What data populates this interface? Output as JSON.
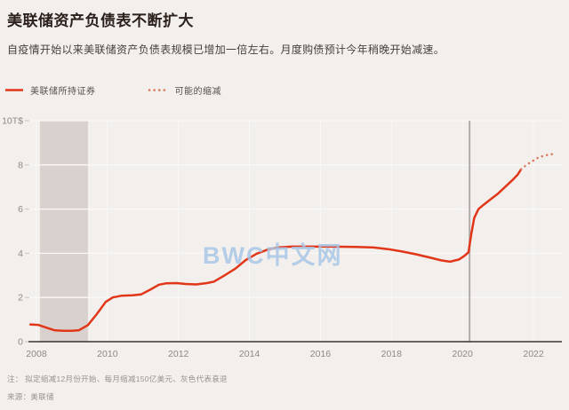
{
  "header": {
    "title": "美联储资产负债表不断扩大",
    "subtitle": "自疫情开始以来美联储资产负债表规模已增加一倍左右。月度购债预计今年稍晚开始减速。"
  },
  "legend": {
    "items": [
      {
        "label": "美联储所持证券",
        "style": "solid",
        "color": "#e23619"
      },
      {
        "label": "可能的缩减",
        "style": "dotted",
        "color": "#d97a5e"
      }
    ]
  },
  "watermark": {
    "text": "BWC中文网",
    "color": "#a9c7e6"
  },
  "footer": {
    "note": "注： 拟定缩减12月份开始、每月缩减150亿美元、灰色代表衰退",
    "source": "来源：美联储"
  },
  "chart_data": {
    "type": "line",
    "title": "美联储资产负债表不断扩大",
    "unit": "T$ (万亿美元)",
    "xlim": [
      2007.8,
      2022.8
    ],
    "ylim": [
      0,
      10
    ],
    "x_ticks": [
      2008,
      2010,
      2012,
      2014,
      2016,
      2018,
      2020,
      2022
    ],
    "y_ticks": [
      0,
      2,
      4,
      6,
      8,
      10
    ],
    "y_tick_labels": [
      "0",
      "2",
      "4",
      "6",
      "8",
      "10T$"
    ],
    "grid": true,
    "legend_position": "top-left",
    "colors": {
      "background": "#f2efed",
      "gridline": "#faf8f6",
      "recession_band": "#d8d1ce",
      "event_line": "#b2abaa",
      "axis_line": "#3a3331",
      "tick_text": "#8f8885"
    },
    "annotations": {
      "recession_band": {
        "x0": 2008.1,
        "x1": 2009.45,
        "meaning": "灰色代表衰退"
      },
      "event_line_x": 2020.2
    },
    "series": [
      {
        "name": "美联储所持证券",
        "style": "solid",
        "color": "#e23619",
        "points": [
          [
            2007.83,
            0.78
          ],
          [
            2008.05,
            0.76
          ],
          [
            2008.25,
            0.65
          ],
          [
            2008.5,
            0.52
          ],
          [
            2008.75,
            0.49
          ],
          [
            2009.0,
            0.49
          ],
          [
            2009.2,
            0.52
          ],
          [
            2009.45,
            0.75
          ],
          [
            2009.7,
            1.25
          ],
          [
            2009.95,
            1.8
          ],
          [
            2010.15,
            2.0
          ],
          [
            2010.4,
            2.08
          ],
          [
            2010.7,
            2.1
          ],
          [
            2010.95,
            2.14
          ],
          [
            2011.2,
            2.35
          ],
          [
            2011.45,
            2.58
          ],
          [
            2011.65,
            2.64
          ],
          [
            2011.95,
            2.65
          ],
          [
            2012.2,
            2.61
          ],
          [
            2012.5,
            2.59
          ],
          [
            2012.8,
            2.65
          ],
          [
            2013.0,
            2.72
          ],
          [
            2013.3,
            3.0
          ],
          [
            2013.6,
            3.3
          ],
          [
            2013.9,
            3.7
          ],
          [
            2014.2,
            3.98
          ],
          [
            2014.5,
            4.16
          ],
          [
            2014.8,
            4.27
          ],
          [
            2015.2,
            4.3
          ],
          [
            2015.8,
            4.3
          ],
          [
            2016.4,
            4.3
          ],
          [
            2017.0,
            4.29
          ],
          [
            2017.5,
            4.26
          ],
          [
            2017.9,
            4.19
          ],
          [
            2018.3,
            4.08
          ],
          [
            2018.7,
            3.95
          ],
          [
            2019.1,
            3.8
          ],
          [
            2019.4,
            3.68
          ],
          [
            2019.65,
            3.62
          ],
          [
            2019.9,
            3.72
          ],
          [
            2020.05,
            3.88
          ],
          [
            2020.17,
            4.05
          ],
          [
            2020.25,
            4.9
          ],
          [
            2020.33,
            5.6
          ],
          [
            2020.45,
            6.0
          ],
          [
            2020.6,
            6.2
          ],
          [
            2020.8,
            6.45
          ],
          [
            2021.0,
            6.7
          ],
          [
            2021.2,
            7.0
          ],
          [
            2021.4,
            7.3
          ],
          [
            2021.55,
            7.55
          ],
          [
            2021.65,
            7.8
          ]
        ]
      },
      {
        "name": "可能的缩减",
        "style": "dotted",
        "color": "#d97a5e",
        "points": [
          [
            2021.65,
            7.8
          ],
          [
            2021.8,
            8.0
          ],
          [
            2021.95,
            8.15
          ],
          [
            2022.1,
            8.3
          ],
          [
            2022.3,
            8.42
          ],
          [
            2022.5,
            8.48
          ],
          [
            2022.65,
            8.5
          ]
        ]
      }
    ]
  }
}
